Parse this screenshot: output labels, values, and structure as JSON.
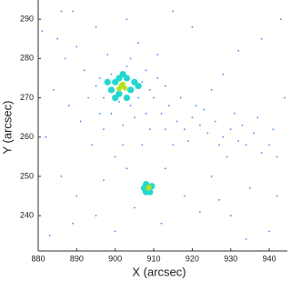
{
  "chart_data": {
    "type": "scatter",
    "x_label": "X (arcsec)",
    "y_label": "Y (arcsec)",
    "xlim": [
      880,
      944.7
    ],
    "ylim": [
      231,
      294.9
    ],
    "xticks": [
      880,
      890,
      900,
      910,
      920,
      930,
      940
    ],
    "yticks": [
      240,
      250,
      260,
      270,
      280,
      290
    ],
    "series": [
      {
        "color": "#3b8cf0",
        "x": [
          885,
          887,
          890,
          892,
          895,
          893,
          896,
          898,
          899,
          897,
          904,
          906,
          908,
          910,
          912,
          909,
          905,
          902,
          900,
          907,
          914,
          916,
          918,
          920,
          922,
          924,
          926,
          928,
          930,
          932,
          934,
          936,
          938,
          940,
          942,
          919,
          921,
          915,
          913,
          911,
          903,
          889,
          884,
          882,
          886,
          890,
          895,
          900,
          905,
          912,
          918,
          925,
          930,
          935,
          940,
          943,
          938,
          932,
          928,
          925,
          920,
          915,
          894,
          891,
          888,
          906,
          899,
          904,
          897,
          907,
          903,
          895,
          901,
          908,
          902,
          896,
          909,
          911,
          913,
          917,
          923,
          927,
          931,
          929,
          933,
          937,
          941,
          883,
          889,
          897,
          903,
          913,
          922,
          927,
          934,
          942,
          944,
          881,
          886
        ],
        "values": [
          285,
          280,
          283,
          277,
          288,
          270,
          275,
          281,
          266,
          262,
          280,
          284,
          277,
          270,
          266,
          262,
          265,
          258,
          255,
          258,
          268,
          264,
          262,
          265,
          263,
          261,
          264,
          260,
          262,
          259,
          258,
          261,
          256,
          258,
          255,
          259,
          268,
          258,
          273,
          281,
          290,
          292,
          272,
          260,
          250,
          245,
          240,
          236,
          242,
          238,
          245,
          250,
          240,
          247,
          236,
          290,
          285,
          282,
          276,
          272,
          288,
          292,
          258,
          264,
          268,
          270,
          276,
          268,
          270,
          274,
          278,
          273,
          269,
          266,
          263,
          266,
          272,
          275,
          262,
          270,
          267,
          258,
          266,
          255,
          263,
          265,
          262,
          235,
          238,
          249,
          252,
          252,
          241,
          244,
          234,
          245,
          270,
          287,
          292
        ]
      },
      {
        "color": "#22d8d0",
        "x": [
          900,
          903,
          904,
          901,
          899,
          902,
          905,
          900,
          903,
          898,
          906,
          901,
          908,
          909,
          908,
          909.5,
          907.5
        ],
        "values": [
          274,
          275,
          272,
          271,
          272,
          276,
          274,
          270,
          270,
          274,
          273,
          275,
          248,
          246,
          246,
          247.5,
          247
        ]
      },
      {
        "color": "#b8e020",
        "x": [
          901.5,
          902.5,
          902,
          901,
          908.6,
          908.8
        ],
        "values": [
          273,
          272.5,
          273.5,
          272.3,
          247,
          247.3
        ]
      }
    ]
  }
}
